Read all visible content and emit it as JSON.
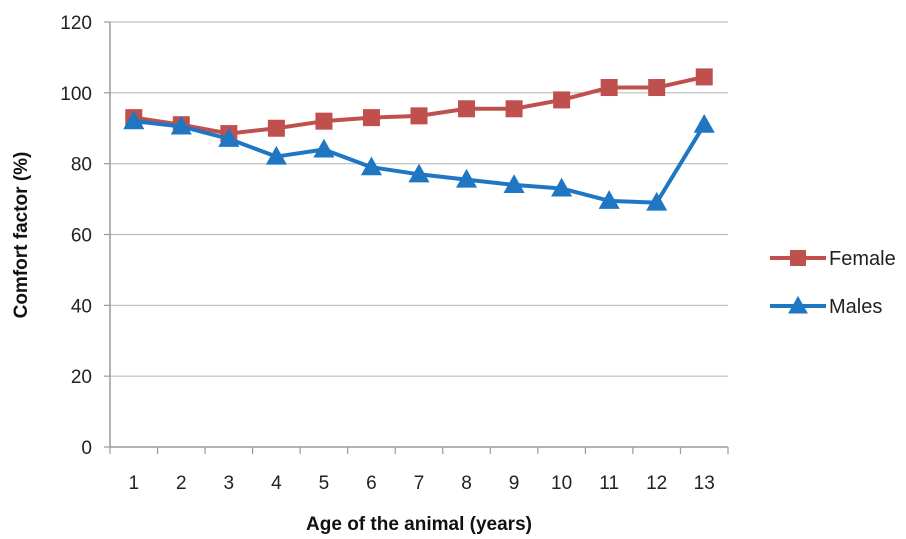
{
  "chart_data": {
    "type": "line",
    "title": "",
    "xlabel": "Age of the animal (years)",
    "ylabel": "Comfort factor (%)",
    "categories": [
      "1",
      "2",
      "3",
      "4",
      "5",
      "6",
      "7",
      "8",
      "9",
      "10",
      "11",
      "12",
      "13"
    ],
    "ylim": [
      0,
      120
    ],
    "yticks": [
      "0",
      "20",
      "40",
      "60",
      "80",
      "100",
      "120"
    ],
    "grid": true,
    "legend_position": "right",
    "series": [
      {
        "name": "Female",
        "color": "#c0504d",
        "marker": "square",
        "values": [
          93,
          91,
          88.5,
          90,
          92,
          93,
          93.5,
          95.5,
          95.5,
          98,
          101.5,
          101.5,
          104.5
        ]
      },
      {
        "name": "Males",
        "color": "#1f77c4",
        "marker": "triangle",
        "values": [
          92,
          90.5,
          87,
          82,
          84,
          79,
          77,
          75.5,
          74,
          73,
          69.5,
          69,
          91
        ]
      }
    ]
  }
}
